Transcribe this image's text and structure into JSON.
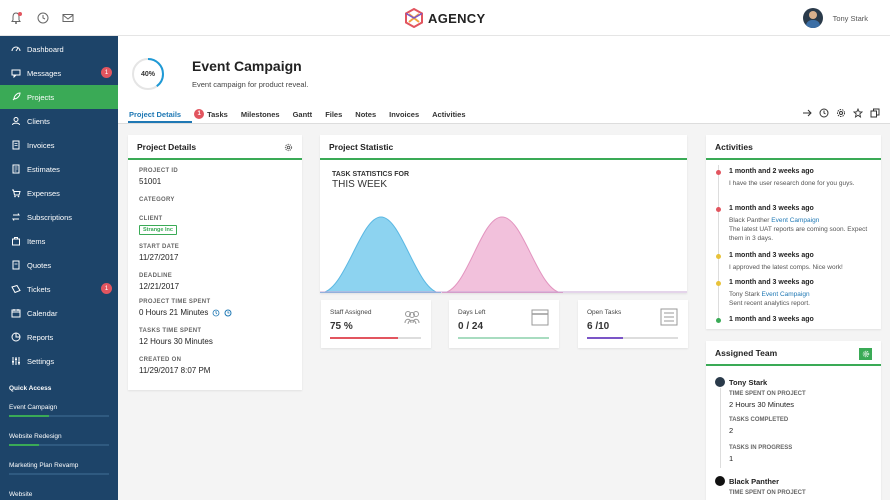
{
  "app": {
    "brand": "AGENCY",
    "user_name": "Tony Stark"
  },
  "sidebar": {
    "items": [
      {
        "label": "Dashboard",
        "icon": "dashboard-icon"
      },
      {
        "label": "Messages",
        "icon": "message-icon",
        "badge": "1"
      },
      {
        "label": "Projects",
        "icon": "rocket-icon",
        "active": true
      },
      {
        "label": "Clients",
        "icon": "user-icon"
      },
      {
        "label": "Invoices",
        "icon": "invoice-icon"
      },
      {
        "label": "Estimates",
        "icon": "estimate-icon"
      },
      {
        "label": "Expenses",
        "icon": "cart-icon"
      },
      {
        "label": "Subscriptions",
        "icon": "subscription-icon"
      },
      {
        "label": "Items",
        "icon": "box-icon"
      },
      {
        "label": "Quotes",
        "icon": "quote-icon"
      },
      {
        "label": "Tickets",
        "icon": "ticket-icon",
        "badge": "1"
      },
      {
        "label": "Calendar",
        "icon": "calendar-icon"
      },
      {
        "label": "Reports",
        "icon": "reports-icon"
      },
      {
        "label": "Settings",
        "icon": "sliders-icon"
      }
    ],
    "quick_access_title": "Quick Access",
    "quick_access": [
      {
        "label": "Event Campaign",
        "progress": 0.4
      },
      {
        "label": "Website Redesign",
        "progress": 0.3
      },
      {
        "label": "Marketing Plan Revamp",
        "progress": 0.0
      },
      {
        "label": "Website",
        "progress": 0.0
      }
    ],
    "accent": "#3aaa56",
    "background": "#1d4469"
  },
  "project": {
    "progress_label": "40%",
    "progress": 0.4,
    "title": "Event Campaign",
    "subtitle": "Event campaign for product reveal."
  },
  "tabs": [
    {
      "label": "Project Details",
      "active": true
    },
    {
      "label": "Tasks",
      "badge": "1"
    },
    {
      "label": "Milestones"
    },
    {
      "label": "Gantt"
    },
    {
      "label": "Files"
    },
    {
      "label": "Notes"
    },
    {
      "label": "Invoices"
    },
    {
      "label": "Activities"
    }
  ],
  "details": {
    "title": "Project Details",
    "fields": [
      {
        "label": "PROJECT ID",
        "value": "51001"
      },
      {
        "label": "CATEGORY",
        "value": ""
      },
      {
        "label": "CLIENT",
        "tag": "Strange Inc"
      },
      {
        "label": "START DATE",
        "value": "11/27/2017"
      },
      {
        "label": "DEADLINE",
        "value": "12/21/2017"
      },
      {
        "label": "PROJECT TIME SPENT",
        "value": "0 Hours 21 Minutes"
      },
      {
        "label": "TASKS TIME SPENT",
        "value": "12 Hours 30 Minutes"
      },
      {
        "label": "CREATED ON",
        "value": "11/29/2017 8:07 PM"
      }
    ]
  },
  "statistic": {
    "title": "Project Statistic",
    "chart_title_line1": "TASK STATISTICS FOR",
    "chart_title_line2": "THIS WEEK",
    "cards": [
      {
        "label": "Staff Assigned",
        "value": "75 %",
        "color": "#e2555f",
        "progress": 0.75,
        "icon": "people-icon"
      },
      {
        "label": "Days Left",
        "value": "0 / 24",
        "color": "#a8dcc0",
        "progress": 1.0,
        "icon": "calendar-icon"
      },
      {
        "label": "Open Tasks",
        "value": "6 /10",
        "color": "#7b55c7",
        "progress": 0.4,
        "icon": "list-icon"
      }
    ]
  },
  "activities": {
    "title": "Activities",
    "items": [
      {
        "time": "1 month and 2 weeks ago",
        "text": "I have the user research done for you guys.",
        "color": "#e2555f"
      },
      {
        "time": "1 month and 3 weeks ago",
        "text": "Black Panther ",
        "link": "Event Campaign",
        "text2": "The latest UAT reports are coming soon. Expect them in 3 days.",
        "color": "#e2555f"
      },
      {
        "time": "1 month and 3 weeks ago",
        "text": "I approved the latest comps. Nice work!",
        "color": "#e8c23a"
      },
      {
        "time": "1 month and 3 weeks ago",
        "text": "Tony Stark ",
        "link": "Event Campaign",
        "text2": "Sent recent analytics report.",
        "color": "#e8c23a"
      },
      {
        "time": "1 month and 3 weeks ago",
        "text": "",
        "color": "#3aaa56"
      }
    ]
  },
  "team": {
    "title": "Assigned Team",
    "members": [
      {
        "name": "Tony Stark",
        "stats": [
          {
            "label": "TIME SPENT ON PROJECT",
            "value": "2 Hours 30 Minutes"
          },
          {
            "label": "TASKS COMPLETED",
            "value": "2"
          },
          {
            "label": "TASKS IN PROGRESS",
            "value": "1"
          }
        ]
      },
      {
        "name": "Black Panther",
        "stats": [
          {
            "label": "TIME SPENT ON PROJECT",
            "value": ""
          }
        ]
      }
    ]
  }
}
